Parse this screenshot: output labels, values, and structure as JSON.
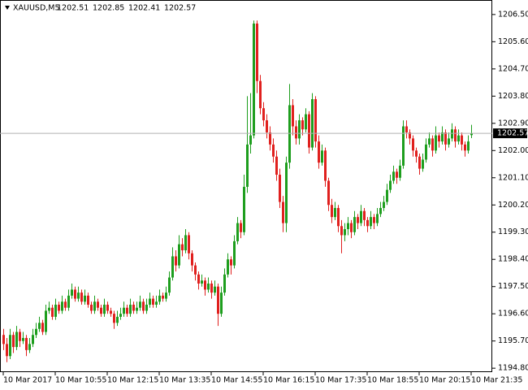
{
  "chart_data": {
    "type": "candlestick",
    "title": "XAUUSD,M5",
    "up_color": "#1e9e1e",
    "down_color": "#e0201e",
    "ylim": [
      1194.67,
      1206.98
    ],
    "xlim": [
      -1,
      150.5
    ],
    "yticks": [
      {
        "value": 1206.5,
        "label": "1206.50"
      },
      {
        "value": 1205.6,
        "label": "1205.60"
      },
      {
        "value": 1204.7,
        "label": "1204.70"
      },
      {
        "value": 1203.8,
        "label": "1203.80"
      },
      {
        "value": 1202.9,
        "label": "1202.90"
      },
      {
        "value": 1202.0,
        "label": "1202.00"
      },
      {
        "value": 1201.1,
        "label": "1201.10"
      },
      {
        "value": 1200.2,
        "label": "1200.20"
      },
      {
        "value": 1199.3,
        "label": "1199.30"
      },
      {
        "value": 1198.4,
        "label": "1198.40"
      },
      {
        "value": 1197.5,
        "label": "1197.50"
      },
      {
        "value": 1196.6,
        "label": "1196.60"
      },
      {
        "value": 1195.7,
        "label": "1195.70"
      },
      {
        "value": 1194.8,
        "label": "1194.80"
      }
    ],
    "xticks": [
      {
        "value": 0,
        "label": "10 Mar 2017"
      },
      {
        "value": 16,
        "label": "10 Mar 10:55"
      },
      {
        "value": 32,
        "label": "10 Mar 12:15"
      },
      {
        "value": 48,
        "label": "10 Mar 13:35"
      },
      {
        "value": 64,
        "label": "10 Mar 14:55"
      },
      {
        "value": 80,
        "label": "10 Mar 16:15"
      },
      {
        "value": 96,
        "label": "10 Mar 17:35"
      },
      {
        "value": 112,
        "label": "10 Mar 18:55"
      },
      {
        "value": 128,
        "label": "10 Mar 20:15"
      },
      {
        "value": 144,
        "label": "10 Mar 21:35"
      }
    ],
    "ohlc": [
      [
        1195.9,
        1196.1,
        1195.4,
        1195.6
      ],
      [
        1195.6,
        1195.8,
        1195.0,
        1195.2
      ],
      [
        1195.2,
        1196.1,
        1195.1,
        1195.9
      ],
      [
        1195.9,
        1196.0,
        1195.3,
        1195.5
      ],
      [
        1195.5,
        1196.2,
        1195.4,
        1196.0
      ],
      [
        1196.0,
        1196.1,
        1195.5,
        1195.7
      ],
      [
        1195.7,
        1196.0,
        1195.6,
        1195.8
      ],
      [
        1195.8,
        1195.9,
        1195.2,
        1195.4
      ],
      [
        1195.4,
        1195.8,
        1195.3,
        1195.6
      ],
      [
        1195.6,
        1196.1,
        1195.5,
        1195.9
      ],
      [
        1195.9,
        1196.3,
        1195.8,
        1196.1
      ],
      [
        1196.1,
        1196.5,
        1196.0,
        1196.3
      ],
      [
        1196.3,
        1196.4,
        1195.9,
        1196.0
      ],
      [
        1196.0,
        1196.9,
        1195.9,
        1196.7
      ],
      [
        1196.7,
        1197.0,
        1196.6,
        1196.8
      ],
      [
        1196.8,
        1196.9,
        1196.4,
        1196.5
      ],
      [
        1196.5,
        1197.1,
        1196.4,
        1196.9
      ],
      [
        1196.9,
        1197.0,
        1196.6,
        1196.7
      ],
      [
        1196.7,
        1197.2,
        1196.6,
        1197.0
      ],
      [
        1197.0,
        1197.1,
        1196.7,
        1196.8
      ],
      [
        1196.8,
        1197.4,
        1196.7,
        1197.2
      ],
      [
        1197.2,
        1197.6,
        1197.1,
        1197.4
      ],
      [
        1197.4,
        1197.5,
        1197.0,
        1197.1
      ],
      [
        1197.1,
        1197.5,
        1197.0,
        1197.3
      ],
      [
        1197.3,
        1197.4,
        1196.9,
        1197.0
      ],
      [
        1197.0,
        1197.4,
        1196.9,
        1197.2
      ],
      [
        1197.2,
        1197.3,
        1196.8,
        1196.9
      ],
      [
        1196.9,
        1197.0,
        1196.6,
        1196.7
      ],
      [
        1196.7,
        1197.2,
        1196.6,
        1197.0
      ],
      [
        1197.0,
        1197.1,
        1196.7,
        1196.8
      ],
      [
        1196.8,
        1196.9,
        1196.5,
        1196.6
      ],
      [
        1196.6,
        1197.1,
        1196.5,
        1196.9
      ],
      [
        1196.9,
        1197.0,
        1196.6,
        1196.7
      ],
      [
        1196.7,
        1196.8,
        1196.5,
        1196.6
      ],
      [
        1196.6,
        1196.7,
        1196.1,
        1196.3
      ],
      [
        1196.3,
        1196.7,
        1196.2,
        1196.5
      ],
      [
        1196.5,
        1196.8,
        1196.4,
        1196.6
      ],
      [
        1196.6,
        1197.0,
        1196.5,
        1196.8
      ],
      [
        1196.8,
        1196.9,
        1196.5,
        1196.6
      ],
      [
        1196.6,
        1197.1,
        1196.5,
        1196.9
      ],
      [
        1196.9,
        1197.0,
        1196.6,
        1196.7
      ],
      [
        1196.7,
        1197.0,
        1196.6,
        1196.8
      ],
      [
        1196.8,
        1197.2,
        1196.7,
        1197.0
      ],
      [
        1197.0,
        1197.1,
        1196.6,
        1196.7
      ],
      [
        1196.7,
        1197.1,
        1196.6,
        1196.9
      ],
      [
        1196.9,
        1197.3,
        1196.8,
        1197.1
      ],
      [
        1197.1,
        1197.2,
        1196.8,
        1196.9
      ],
      [
        1196.9,
        1197.2,
        1196.8,
        1197.0
      ],
      [
        1197.0,
        1197.4,
        1196.9,
        1197.2
      ],
      [
        1197.2,
        1197.3,
        1197.0,
        1197.1
      ],
      [
        1197.1,
        1197.5,
        1197.0,
        1197.3
      ],
      [
        1197.3,
        1198.0,
        1197.2,
        1197.8
      ],
      [
        1197.8,
        1198.8,
        1197.7,
        1198.5
      ],
      [
        1198.5,
        1198.7,
        1198.0,
        1198.2
      ],
      [
        1198.2,
        1199.2,
        1198.1,
        1198.9
      ],
      [
        1198.9,
        1199.1,
        1198.5,
        1198.7
      ],
      [
        1198.7,
        1199.4,
        1198.6,
        1199.2
      ],
      [
        1199.2,
        1199.3,
        1198.4,
        1198.6
      ],
      [
        1198.6,
        1198.7,
        1198.0,
        1198.2
      ],
      [
        1198.2,
        1198.3,
        1197.7,
        1197.9
      ],
      [
        1197.9,
        1198.0,
        1197.4,
        1197.6
      ],
      [
        1197.6,
        1197.9,
        1197.5,
        1197.7
      ],
      [
        1197.7,
        1197.8,
        1197.2,
        1197.4
      ],
      [
        1197.4,
        1197.8,
        1197.3,
        1197.6
      ],
      [
        1197.6,
        1197.7,
        1197.1,
        1197.3
      ],
      [
        1197.3,
        1197.7,
        1197.2,
        1197.5
      ],
      [
        1197.5,
        1197.6,
        1196.2,
        1196.6
      ],
      [
        1196.6,
        1197.5,
        1196.5,
        1197.3
      ],
      [
        1197.3,
        1198.1,
        1197.2,
        1197.9
      ],
      [
        1197.9,
        1198.6,
        1197.8,
        1198.4
      ],
      [
        1198.4,
        1198.5,
        1197.9,
        1198.2
      ],
      [
        1198.2,
        1199.2,
        1198.1,
        1199.0
      ],
      [
        1199.0,
        1199.8,
        1198.9,
        1199.6
      ],
      [
        1199.6,
        1199.7,
        1199.1,
        1199.3
      ],
      [
        1199.3,
        1201.2,
        1199.2,
        1200.8
      ],
      [
        1200.8,
        1203.8,
        1200.6,
        1202.2
      ],
      [
        1202.2,
        1203.9,
        1201.9,
        1202.5
      ],
      [
        1202.5,
        1206.3,
        1202.4,
        1206.2
      ],
      [
        1206.2,
        1206.3,
        1203.9,
        1204.3
      ],
      [
        1204.3,
        1204.5,
        1203.2,
        1203.4
      ],
      [
        1203.4,
        1203.6,
        1202.8,
        1203.0
      ],
      [
        1203.0,
        1203.2,
        1202.4,
        1202.6
      ],
      [
        1202.6,
        1202.8,
        1202.0,
        1202.2
      ],
      [
        1202.2,
        1202.4,
        1201.6,
        1201.8
      ],
      [
        1201.8,
        1202.0,
        1201.0,
        1201.2
      ],
      [
        1201.2,
        1201.4,
        1200.1,
        1200.3
      ],
      [
        1200.3,
        1200.5,
        1199.3,
        1199.6
      ],
      [
        1199.6,
        1201.8,
        1199.3,
        1201.6
      ],
      [
        1201.6,
        1204.2,
        1201.4,
        1203.5
      ],
      [
        1203.5,
        1203.7,
        1202.5,
        1202.8
      ],
      [
        1202.8,
        1203.0,
        1202.2,
        1202.4
      ],
      [
        1202.4,
        1203.2,
        1202.2,
        1203.0
      ],
      [
        1203.0,
        1203.1,
        1202.5,
        1202.7
      ],
      [
        1202.7,
        1203.4,
        1202.6,
        1203.2
      ],
      [
        1203.2,
        1203.3,
        1201.9,
        1202.1
      ],
      [
        1202.1,
        1203.9,
        1202.0,
        1203.7
      ],
      [
        1203.7,
        1203.8,
        1202.1,
        1202.3
      ],
      [
        1202.3,
        1202.5,
        1201.4,
        1201.6
      ],
      [
        1201.6,
        1202.2,
        1201.5,
        1202.0
      ],
      [
        1202.0,
        1202.1,
        1200.8,
        1201.0
      ],
      [
        1201.0,
        1201.1,
        1200.0,
        1200.2
      ],
      [
        1200.2,
        1200.4,
        1199.6,
        1199.8
      ],
      [
        1199.8,
        1200.3,
        1199.7,
        1200.1
      ],
      [
        1200.1,
        1200.2,
        1199.3,
        1199.5
      ],
      [
        1199.5,
        1199.7,
        1198.6,
        1199.2
      ],
      [
        1199.2,
        1199.6,
        1199.0,
        1199.4
      ],
      [
        1199.4,
        1199.8,
        1199.2,
        1199.6
      ],
      [
        1199.6,
        1199.7,
        1199.1,
        1199.3
      ],
      [
        1199.3,
        1200.0,
        1199.2,
        1199.8
      ],
      [
        1199.8,
        1199.9,
        1199.4,
        1199.6
      ],
      [
        1199.6,
        1200.2,
        1199.5,
        1200.0
      ],
      [
        1200.0,
        1200.1,
        1199.5,
        1199.7
      ],
      [
        1199.7,
        1199.8,
        1199.3,
        1199.5
      ],
      [
        1199.5,
        1200.0,
        1199.4,
        1199.8
      ],
      [
        1199.8,
        1199.9,
        1199.4,
        1199.6
      ],
      [
        1199.6,
        1200.1,
        1199.5,
        1199.9
      ],
      [
        1199.9,
        1200.3,
        1199.8,
        1200.1
      ],
      [
        1200.1,
        1200.5,
        1200.0,
        1200.3
      ],
      [
        1200.3,
        1200.9,
        1200.2,
        1200.7
      ],
      [
        1200.7,
        1201.2,
        1200.6,
        1201.0
      ],
      [
        1201.0,
        1201.5,
        1200.9,
        1201.3
      ],
      [
        1201.3,
        1201.4,
        1200.9,
        1201.1
      ],
      [
        1201.1,
        1201.7,
        1201.0,
        1201.5
      ],
      [
        1201.5,
        1203.0,
        1201.4,
        1202.8
      ],
      [
        1202.8,
        1203.0,
        1202.4,
        1202.6
      ],
      [
        1202.6,
        1202.7,
        1202.2,
        1202.4
      ],
      [
        1202.4,
        1202.5,
        1201.8,
        1202.0
      ],
      [
        1202.0,
        1202.1,
        1201.6,
        1201.8
      ],
      [
        1201.8,
        1201.9,
        1201.2,
        1201.4
      ],
      [
        1201.4,
        1201.9,
        1201.3,
        1201.7
      ],
      [
        1201.7,
        1202.4,
        1201.6,
        1202.2
      ],
      [
        1202.2,
        1202.6,
        1202.1,
        1202.4
      ],
      [
        1202.4,
        1202.5,
        1201.8,
        1202.0
      ],
      [
        1202.0,
        1202.8,
        1201.9,
        1202.5
      ],
      [
        1202.5,
        1202.6,
        1202.1,
        1202.3
      ],
      [
        1202.3,
        1202.8,
        1202.2,
        1202.6
      ],
      [
        1202.6,
        1202.7,
        1202.0,
        1202.2
      ],
      [
        1202.2,
        1202.6,
        1202.1,
        1202.4
      ],
      [
        1202.4,
        1202.9,
        1202.3,
        1202.7
      ],
      [
        1202.7,
        1202.8,
        1202.1,
        1202.3
      ],
      [
        1202.3,
        1202.7,
        1202.2,
        1202.5
      ],
      [
        1202.5,
        1202.6,
        1202.0,
        1202.2
      ],
      [
        1202.2,
        1202.3,
        1201.8,
        1202.0
      ],
      [
        1202.0,
        1202.5,
        1201.9,
        1202.3
      ],
      [
        1202.51,
        1202.85,
        1202.41,
        1202.57
      ]
    ]
  }
}
